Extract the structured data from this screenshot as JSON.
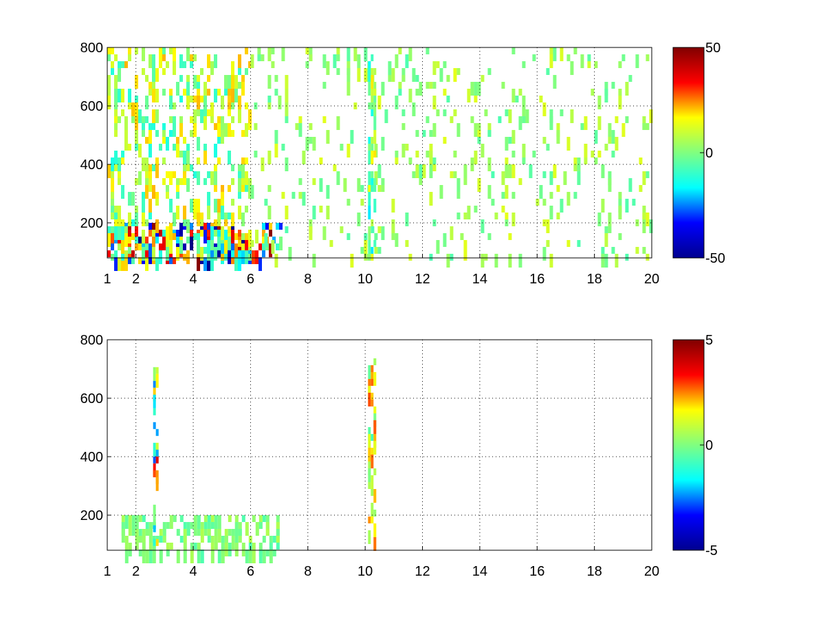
{
  "chart_data": [
    {
      "type": "heatmap",
      "title": "",
      "xlabel": "",
      "ylabel": "",
      "xlim": [
        1,
        20
      ],
      "ylim": [
        80,
        800
      ],
      "xticks": [
        1,
        2,
        4,
        6,
        8,
        10,
        12,
        14,
        16,
        18,
        20
      ],
      "yticks": [
        200,
        400,
        600,
        800
      ],
      "grid": true,
      "colormap": "jet",
      "clim": [
        -50,
        50
      ],
      "colorbar_ticks": [
        -50,
        0,
        50
      ],
      "missing_color": "#ffffff",
      "colorbar_colors": [
        "#00008f",
        "#0000ff",
        "#00ffff",
        "#80ff80",
        "#ffff00",
        "#ff0000",
        "#800000"
      ],
      "features": [
        {
          "x_range": [
            1.0,
            7.0
          ],
          "y_range": [
            80,
            200
          ],
          "values_range": [
            -50,
            50
          ],
          "density": "dense"
        },
        {
          "x_range": [
            1.0,
            6.0
          ],
          "y_range": [
            80,
            800
          ],
          "values_range": [
            -10,
            20
          ],
          "density": "medium"
        },
        {
          "x_range": [
            6.0,
            20.0
          ],
          "y_range": [
            80,
            800
          ],
          "values_range": [
            -5,
            10
          ],
          "density": "sparse"
        },
        {
          "x_range": [
            10.1,
            10.3
          ],
          "y_range": [
            80,
            800
          ],
          "values_range": [
            -15,
            15
          ],
          "density": "stripe"
        }
      ]
    },
    {
      "type": "heatmap",
      "title": "",
      "xlabel": "",
      "ylabel": "",
      "xlim": [
        1,
        20
      ],
      "ylim": [
        80,
        800
      ],
      "xticks": [
        1,
        2,
        4,
        6,
        8,
        10,
        12,
        14,
        16,
        18,
        20
      ],
      "yticks": [
        200,
        400,
        600,
        800
      ],
      "grid": true,
      "colormap": "jet",
      "clim": [
        -5,
        5
      ],
      "colorbar_ticks": [
        -5,
        0,
        5
      ],
      "missing_color": "#ffffff",
      "colorbar_colors": [
        "#00008f",
        "#0000ff",
        "#00ffff",
        "#80ff80",
        "#ffff00",
        "#ff0000",
        "#800000"
      ],
      "features": [
        {
          "x_range": [
            1.5,
            7.0
          ],
          "y_range": [
            80,
            200
          ],
          "values_range": [
            -0.5,
            0.5
          ],
          "density": "dense"
        },
        {
          "x_range": [
            2.6,
            2.7
          ],
          "y_range": [
            80,
            730
          ],
          "values_range": [
            -3,
            5
          ],
          "density": "stripe"
        },
        {
          "x_range": [
            10.1,
            10.3
          ],
          "y_range": [
            110,
            760
          ],
          "values_range": [
            -1,
            3
          ],
          "density": "stripe"
        }
      ]
    }
  ]
}
